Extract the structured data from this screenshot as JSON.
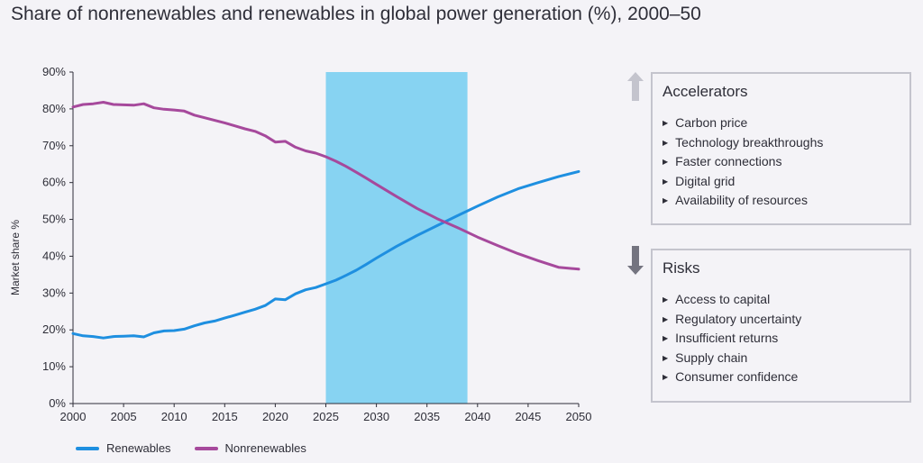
{
  "title": "Share of nonrenewables and renewables in global power generation (%), 2000–50",
  "colors": {
    "renewables": "#1e8fe0",
    "nonrenewables": "#a6499c",
    "band": "#87d3f2",
    "up_arrow": "#c4c4cd",
    "down_arrow": "#747480"
  },
  "panels": {
    "accelerators": {
      "title": "Accelerators",
      "icon": "arrow-up-icon",
      "items": [
        "Carbon price",
        "Technology breakthroughs",
        "Faster connections",
        "Digital grid",
        "Availability of resources"
      ]
    },
    "risks": {
      "title": "Risks",
      "icon": "arrow-down-icon",
      "items": [
        "Access to capital",
        "Regulatory uncertainty",
        "Insufficient returns",
        "Supply chain",
        "Consumer confidence"
      ]
    }
  },
  "chart_data": {
    "type": "line",
    "title": "Share of nonrenewables and renewables in global power generation (%), 2000–50",
    "xlabel": "",
    "ylabel": "Market share %",
    "xlim": [
      2000,
      2050
    ],
    "ylim": [
      0,
      90
    ],
    "x_ticks": [
      "2000",
      "2005",
      "2010",
      "2015",
      "2020",
      "2025",
      "2030",
      "2035",
      "2040",
      "2045",
      "2050"
    ],
    "y_ticks": [
      "0%",
      "10%",
      "20%",
      "30%",
      "40%",
      "50%",
      "60%",
      "70%",
      "80%",
      "90%"
    ],
    "highlight_band": [
      2025,
      2039
    ],
    "grid": false,
    "legend_position": "bottom-left",
    "series": [
      {
        "name": "Renewables",
        "x": [
          2000,
          2001,
          2002,
          2003,
          2004,
          2005,
          2006,
          2007,
          2008,
          2009,
          2010,
          2011,
          2012,
          2013,
          2014,
          2015,
          2016,
          2017,
          2018,
          2019,
          2020,
          2021,
          2022,
          2023,
          2024,
          2025,
          2026,
          2027,
          2028,
          2029,
          2030,
          2032,
          2034,
          2036,
          2038,
          2040,
          2042,
          2044,
          2046,
          2048,
          2050
        ],
        "values": [
          19.0,
          18.4,
          18.2,
          17.8,
          18.2,
          18.3,
          18.4,
          18.1,
          19.2,
          19.7,
          19.8,
          20.2,
          21.1,
          21.9,
          22.4,
          23.2,
          24.0,
          24.8,
          25.6,
          26.6,
          28.4,
          28.2,
          29.8,
          30.9,
          31.5,
          32.5,
          33.5,
          34.8,
          36.2,
          37.8,
          39.5,
          42.7,
          45.6,
          48.3,
          51.0,
          53.6,
          56.1,
          58.3,
          60.0,
          61.6,
          63.0
        ]
      },
      {
        "name": "Nonrenewables",
        "x": [
          2000,
          2001,
          2002,
          2003,
          2004,
          2005,
          2006,
          2007,
          2008,
          2009,
          2010,
          2011,
          2012,
          2013,
          2014,
          2015,
          2016,
          2017,
          2018,
          2019,
          2020,
          2021,
          2022,
          2023,
          2024,
          2025,
          2026,
          2027,
          2028,
          2029,
          2030,
          2032,
          2034,
          2036,
          2038,
          2040,
          2042,
          2044,
          2046,
          2048,
          2050
        ],
        "values": [
          80.5,
          81.2,
          81.4,
          81.8,
          81.2,
          81.1,
          81.0,
          81.4,
          80.3,
          79.9,
          79.7,
          79.4,
          78.3,
          77.6,
          76.9,
          76.2,
          75.4,
          74.6,
          73.9,
          72.7,
          71.0,
          71.2,
          69.6,
          68.6,
          68.0,
          67.0,
          65.8,
          64.4,
          62.8,
          61.2,
          59.5,
          56.2,
          53.0,
          50.2,
          47.8,
          45.2,
          42.9,
          40.7,
          38.8,
          37.0,
          36.5
        ]
      }
    ]
  }
}
